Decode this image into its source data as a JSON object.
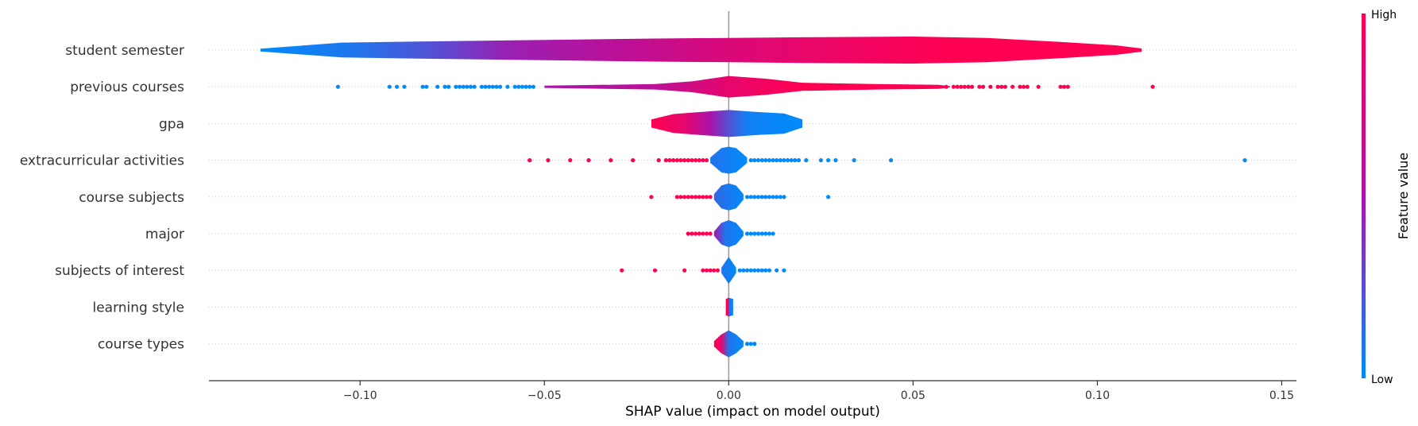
{
  "chart_data": {
    "type": "violin",
    "xlabel": "SHAP value (impact on model output)",
    "xlim": [
      -0.141,
      0.154
    ],
    "xticks": [
      -0.1,
      -0.05,
      0.0,
      0.05,
      0.1,
      0.15
    ],
    "xtick_labels": [
      "−0.10",
      "−0.05",
      "0.00",
      "0.05",
      "0.10",
      "0.15"
    ],
    "zero_line": 0.0,
    "colorbar": {
      "label": "Feature value",
      "high_label": "High",
      "low_label": "Low",
      "low_color": "#008bfb",
      "high_color": "#ff0052"
    },
    "features": [
      {
        "name": "student semester",
        "range": [
          -0.127,
          0.112
        ],
        "profile": [
          [
            -0.127,
            0.1
          ],
          [
            -0.105,
            0.55
          ],
          [
            -0.08,
            0.65
          ],
          [
            -0.05,
            0.75
          ],
          [
            -0.02,
            0.85
          ],
          [
            0.0,
            0.9
          ],
          [
            0.02,
            0.95
          ],
          [
            0.05,
            1.0
          ],
          [
            0.07,
            0.9
          ],
          [
            0.09,
            0.6
          ],
          [
            0.105,
            0.35
          ],
          [
            0.112,
            0.12
          ]
        ],
        "color_stops": [
          [
            -0.127,
            0.0
          ],
          [
            -0.1,
            0.1
          ],
          [
            -0.08,
            0.25
          ],
          [
            -0.06,
            0.45
          ],
          [
            -0.03,
            0.6
          ],
          [
            0.0,
            0.78
          ],
          [
            0.03,
            0.9
          ],
          [
            0.06,
            1.0
          ],
          [
            0.112,
            1.0
          ]
        ],
        "points": []
      },
      {
        "name": "previous courses",
        "range": [
          -0.05,
          0.115
        ],
        "profile": [
          [
            -0.05,
            0.08
          ],
          [
            -0.02,
            0.2
          ],
          [
            -0.01,
            0.4
          ],
          [
            0.0,
            0.8
          ],
          [
            0.01,
            0.6
          ],
          [
            0.02,
            0.3
          ],
          [
            0.04,
            0.2
          ],
          [
            0.057,
            0.15
          ],
          [
            0.06,
            0.05
          ]
        ],
        "color_stops": [
          [
            -0.05,
            0.5
          ],
          [
            -0.02,
            0.6
          ],
          [
            0.0,
            0.85
          ],
          [
            0.02,
            1.0
          ],
          [
            0.06,
            1.0
          ]
        ],
        "points": [
          {
            "x": -0.106,
            "c": 0
          },
          {
            "x": -0.092,
            "c": 0
          },
          {
            "x": -0.09,
            "c": 0
          },
          {
            "x": -0.088,
            "c": 0
          },
          {
            "x": -0.083,
            "c": 0
          },
          {
            "x": -0.082,
            "c": 0
          },
          {
            "x": -0.079,
            "c": 0
          },
          {
            "x": -0.077,
            "c": 0
          },
          {
            "x": -0.076,
            "c": 0
          },
          {
            "x": -0.074,
            "c": 0
          },
          {
            "x": -0.073,
            "c": 0
          },
          {
            "x": -0.072,
            "c": 0
          },
          {
            "x": -0.071,
            "c": 0
          },
          {
            "x": -0.07,
            "c": 0
          },
          {
            "x": -0.069,
            "c": 0
          },
          {
            "x": -0.067,
            "c": 0
          },
          {
            "x": -0.066,
            "c": 0
          },
          {
            "x": -0.065,
            "c": 0
          },
          {
            "x": -0.064,
            "c": 0
          },
          {
            "x": -0.063,
            "c": 0
          },
          {
            "x": -0.062,
            "c": 0
          },
          {
            "x": -0.06,
            "c": 0
          },
          {
            "x": -0.058,
            "c": 0
          },
          {
            "x": -0.057,
            "c": 0
          },
          {
            "x": -0.056,
            "c": 0
          },
          {
            "x": -0.055,
            "c": 0
          },
          {
            "x": -0.054,
            "c": 0
          },
          {
            "x": -0.053,
            "c": 0
          },
          {
            "x": 0.059,
            "c": 1
          },
          {
            "x": 0.061,
            "c": 1
          },
          {
            "x": 0.062,
            "c": 1
          },
          {
            "x": 0.063,
            "c": 1
          },
          {
            "x": 0.064,
            "c": 1
          },
          {
            "x": 0.065,
            "c": 1
          },
          {
            "x": 0.066,
            "c": 1
          },
          {
            "x": 0.068,
            "c": 1
          },
          {
            "x": 0.069,
            "c": 1
          },
          {
            "x": 0.071,
            "c": 1
          },
          {
            "x": 0.073,
            "c": 1
          },
          {
            "x": 0.074,
            "c": 1
          },
          {
            "x": 0.075,
            "c": 1
          },
          {
            "x": 0.077,
            "c": 1
          },
          {
            "x": 0.079,
            "c": 1
          },
          {
            "x": 0.08,
            "c": 1
          },
          {
            "x": 0.081,
            "c": 1
          },
          {
            "x": 0.084,
            "c": 1
          },
          {
            "x": 0.09,
            "c": 1
          },
          {
            "x": 0.091,
            "c": 1
          },
          {
            "x": 0.092,
            "c": 1
          },
          {
            "x": 0.115,
            "c": 1
          }
        ]
      },
      {
        "name": "gpa",
        "range": [
          -0.021,
          0.02
        ],
        "profile": [
          [
            -0.021,
            0.3
          ],
          [
            -0.015,
            0.7
          ],
          [
            -0.008,
            0.85
          ],
          [
            0.0,
            1.0
          ],
          [
            0.008,
            0.85
          ],
          [
            0.015,
            0.75
          ],
          [
            0.02,
            0.3
          ]
        ],
        "color_stops": [
          [
            -0.021,
            1.0
          ],
          [
            -0.012,
            0.85
          ],
          [
            -0.005,
            0.5
          ],
          [
            0.0,
            0.25
          ],
          [
            0.005,
            0.05
          ],
          [
            0.02,
            0.0
          ]
        ],
        "points": []
      },
      {
        "name": "extracurricular activities",
        "range": [
          -0.005,
          0.005
        ],
        "profile": [
          [
            -0.005,
            0.2
          ],
          [
            -0.002,
            0.9
          ],
          [
            0.0,
            1.0
          ],
          [
            0.002,
            0.9
          ],
          [
            0.005,
            0.2
          ]
        ],
        "color_stops": [
          [
            -0.005,
            0.1
          ],
          [
            0.005,
            0.0
          ]
        ],
        "points": [
          {
            "x": -0.054,
            "c": 1
          },
          {
            "x": -0.049,
            "c": 1
          },
          {
            "x": -0.043,
            "c": 1
          },
          {
            "x": -0.038,
            "c": 1
          },
          {
            "x": -0.032,
            "c": 1
          },
          {
            "x": -0.026,
            "c": 1
          },
          {
            "x": -0.019,
            "c": 1
          },
          {
            "x": -0.017,
            "c": 1
          },
          {
            "x": -0.016,
            "c": 1
          },
          {
            "x": -0.015,
            "c": 1
          },
          {
            "x": -0.014,
            "c": 1
          },
          {
            "x": -0.013,
            "c": 1
          },
          {
            "x": -0.012,
            "c": 1
          },
          {
            "x": -0.011,
            "c": 1
          },
          {
            "x": -0.01,
            "c": 1
          },
          {
            "x": -0.009,
            "c": 1
          },
          {
            "x": -0.008,
            "c": 1
          },
          {
            "x": -0.007,
            "c": 1
          },
          {
            "x": -0.006,
            "c": 1
          },
          {
            "x": 0.006,
            "c": 0
          },
          {
            "x": 0.007,
            "c": 0
          },
          {
            "x": 0.008,
            "c": 0
          },
          {
            "x": 0.009,
            "c": 0
          },
          {
            "x": 0.01,
            "c": 0
          },
          {
            "x": 0.011,
            "c": 0
          },
          {
            "x": 0.012,
            "c": 0
          },
          {
            "x": 0.013,
            "c": 0
          },
          {
            "x": 0.014,
            "c": 0
          },
          {
            "x": 0.015,
            "c": 0
          },
          {
            "x": 0.016,
            "c": 0
          },
          {
            "x": 0.017,
            "c": 0
          },
          {
            "x": 0.018,
            "c": 0
          },
          {
            "x": 0.019,
            "c": 0
          },
          {
            "x": 0.021,
            "c": 0
          },
          {
            "x": 0.025,
            "c": 0
          },
          {
            "x": 0.027,
            "c": 0
          },
          {
            "x": 0.029,
            "c": 0
          },
          {
            "x": 0.034,
            "c": 0
          },
          {
            "x": 0.044,
            "c": 0
          },
          {
            "x": 0.14,
            "c": 0
          }
        ]
      },
      {
        "name": "course subjects",
        "range": [
          -0.004,
          0.004
        ],
        "profile": [
          [
            -0.004,
            0.2
          ],
          [
            -0.002,
            0.85
          ],
          [
            0.0,
            1.0
          ],
          [
            0.002,
            0.85
          ],
          [
            0.004,
            0.2
          ]
        ],
        "color_stops": [
          [
            -0.004,
            0.15
          ],
          [
            0.004,
            0.0
          ]
        ],
        "points": [
          {
            "x": -0.021,
            "c": 1
          },
          {
            "x": -0.014,
            "c": 1
          },
          {
            "x": -0.013,
            "c": 1
          },
          {
            "x": -0.012,
            "c": 1
          },
          {
            "x": -0.011,
            "c": 1
          },
          {
            "x": -0.01,
            "c": 1
          },
          {
            "x": -0.009,
            "c": 1
          },
          {
            "x": -0.008,
            "c": 1
          },
          {
            "x": -0.007,
            "c": 1
          },
          {
            "x": -0.006,
            "c": 1
          },
          {
            "x": -0.005,
            "c": 1
          },
          {
            "x": 0.005,
            "c": 0
          },
          {
            "x": 0.006,
            "c": 0
          },
          {
            "x": 0.007,
            "c": 0
          },
          {
            "x": 0.008,
            "c": 0
          },
          {
            "x": 0.009,
            "c": 0
          },
          {
            "x": 0.01,
            "c": 0
          },
          {
            "x": 0.011,
            "c": 0
          },
          {
            "x": 0.012,
            "c": 0
          },
          {
            "x": 0.013,
            "c": 0
          },
          {
            "x": 0.014,
            "c": 0
          },
          {
            "x": 0.015,
            "c": 0
          },
          {
            "x": 0.027,
            "c": 0
          }
        ]
      },
      {
        "name": "major",
        "range": [
          -0.004,
          0.004
        ],
        "profile": [
          [
            -0.004,
            0.15
          ],
          [
            -0.002,
            0.8
          ],
          [
            0.0,
            1.0
          ],
          [
            0.002,
            0.8
          ],
          [
            0.004,
            0.15
          ]
        ],
        "color_stops": [
          [
            -0.004,
            0.5
          ],
          [
            -0.001,
            0.1
          ],
          [
            0.004,
            0.0
          ]
        ],
        "points": [
          {
            "x": -0.011,
            "c": 1
          },
          {
            "x": -0.01,
            "c": 1
          },
          {
            "x": -0.009,
            "c": 1
          },
          {
            "x": -0.008,
            "c": 1
          },
          {
            "x": -0.007,
            "c": 1
          },
          {
            "x": -0.006,
            "c": 1
          },
          {
            "x": -0.005,
            "c": 1
          },
          {
            "x": 0.005,
            "c": 0
          },
          {
            "x": 0.006,
            "c": 0
          },
          {
            "x": 0.007,
            "c": 0
          },
          {
            "x": 0.008,
            "c": 0
          },
          {
            "x": 0.009,
            "c": 0
          },
          {
            "x": 0.01,
            "c": 0
          },
          {
            "x": 0.011,
            "c": 0
          },
          {
            "x": 0.012,
            "c": 0
          }
        ]
      },
      {
        "name": "subjects of interest",
        "range": [
          -0.002,
          0.002
        ],
        "profile": [
          [
            -0.002,
            0.2
          ],
          [
            0.0,
            1.0
          ],
          [
            0.002,
            0.2
          ]
        ],
        "color_stops": [
          [
            -0.002,
            0.1
          ],
          [
            0.002,
            0.0
          ]
        ],
        "points": [
          {
            "x": -0.029,
            "c": 1
          },
          {
            "x": -0.02,
            "c": 1
          },
          {
            "x": -0.012,
            "c": 1
          },
          {
            "x": -0.007,
            "c": 1
          },
          {
            "x": -0.006,
            "c": 1
          },
          {
            "x": -0.005,
            "c": 1
          },
          {
            "x": -0.004,
            "c": 1
          },
          {
            "x": -0.003,
            "c": 1
          },
          {
            "x": 0.003,
            "c": 0
          },
          {
            "x": 0.004,
            "c": 0
          },
          {
            "x": 0.005,
            "c": 0
          },
          {
            "x": 0.006,
            "c": 0
          },
          {
            "x": 0.007,
            "c": 0
          },
          {
            "x": 0.008,
            "c": 0
          },
          {
            "x": 0.009,
            "c": 0
          },
          {
            "x": 0.01,
            "c": 0
          },
          {
            "x": 0.011,
            "c": 0
          },
          {
            "x": 0.013,
            "c": 0
          },
          {
            "x": 0.015,
            "c": 0
          }
        ]
      },
      {
        "name": "learning style",
        "range": [
          -0.0008,
          0.0012
        ],
        "profile": [
          [
            -0.0008,
            0.6
          ],
          [
            0.0,
            0.7
          ],
          [
            0.0012,
            0.6
          ]
        ],
        "color_stops": [
          [
            -0.0008,
            1.0
          ],
          [
            -0.0002,
            0.9
          ],
          [
            0.0002,
            0.1
          ],
          [
            0.0012,
            0.0
          ]
        ],
        "points": []
      },
      {
        "name": "course types",
        "range": [
          -0.004,
          0.004
        ],
        "profile": [
          [
            -0.004,
            0.2
          ],
          [
            -0.002,
            0.7
          ],
          [
            0.0,
            1.0
          ],
          [
            0.002,
            0.7
          ],
          [
            0.004,
            0.2
          ]
        ],
        "color_stops": [
          [
            -0.004,
            1.0
          ],
          [
            -0.002,
            0.85
          ],
          [
            0.0,
            0.1
          ],
          [
            0.004,
            0.0
          ]
        ],
        "points": [
          {
            "x": 0.005,
            "c": 0
          },
          {
            "x": 0.006,
            "c": 0
          },
          {
            "x": 0.007,
            "c": 0
          }
        ]
      }
    ]
  }
}
